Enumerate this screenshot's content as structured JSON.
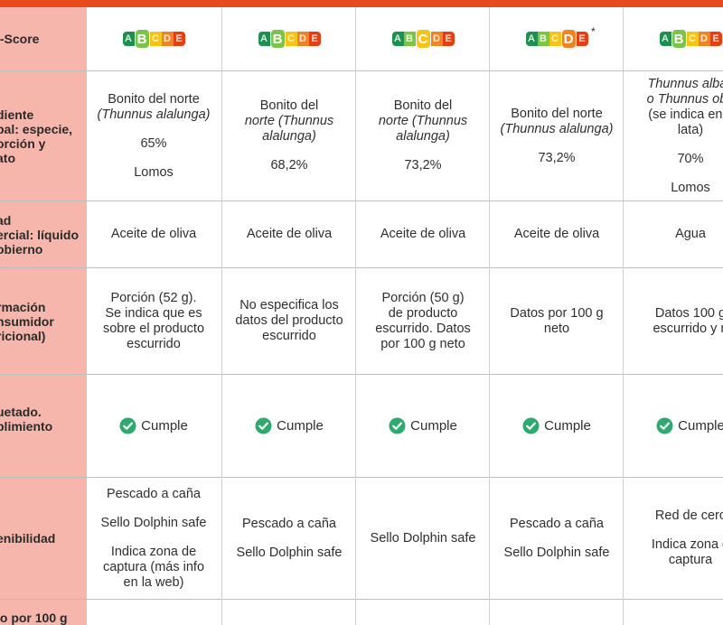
{
  "colors": {
    "accent_bar": "#e84a1b",
    "label_bg": "#f6b6ac",
    "check_green": "#2daa6e",
    "ns_a": "#1e8f4e",
    "ns_b": "#7ac547",
    "ns_c": "#f5c415",
    "ns_d": "#f08424",
    "ns_e": "#e63e11"
  },
  "row_labels": {
    "nutriscore": "i-Score",
    "ingrediente": "diente\npal: especie,\norción y\nato",
    "denominacion": "ad\nercial: líquido\nobierno",
    "informacion": "rmación\nnsumidor\nricional)",
    "etiquetado": "uetado.\nplimiento\nl",
    "sostenibilidad": "enibilidad",
    "precio": "io por 100 g"
  },
  "nutriscore_letters": [
    "A",
    "B",
    "C",
    "D",
    "E"
  ],
  "products": [
    {
      "nutriscore_active": "B",
      "ingrediente": [
        "Bonito del norte",
        "(Thunnus alalunga)",
        "",
        "65%",
        "",
        "Lomos"
      ],
      "liquido": "Aceite de oliva",
      "info": [
        "Porción (52 g).",
        "Se indica que es",
        "sobre el producto",
        "escurrido"
      ],
      "cumple": "Cumple",
      "sostenibilidad": [
        "Pescado a caña",
        "",
        "Sello Dolphin safe",
        "",
        "Indica zona de",
        "captura (más info",
        "en la web)"
      ]
    },
    {
      "nutriscore_active": "B",
      "ingrediente": [
        "Bonito del",
        "norte (Thunnus",
        "alalunga)",
        "",
        "68,2%"
      ],
      "liquido": "Aceite de oliva",
      "info": [
        "No especifica los",
        "datos del producto",
        "escurrido"
      ],
      "cumple": "Cumple",
      "sostenibilidad": [
        "Pescado a caña",
        "",
        "Sello Dolphin safe"
      ]
    },
    {
      "nutriscore_active": "C",
      "ingrediente": [
        "Bonito del",
        "norte (Thunnus",
        "alalunga)",
        "",
        "73,2%"
      ],
      "liquido": "Aceite de oliva",
      "info": [
        "Porción (50 g)",
        "de producto",
        "escurrido. Datos",
        "por 100 g neto"
      ],
      "cumple": "Cumple",
      "sostenibilidad": [
        "Sello Dolphin safe"
      ]
    },
    {
      "nutriscore_active": "D",
      "nutriscore_note": "*",
      "ingrediente": [
        "Bonito del norte",
        "(Thunnus alalunga)",
        "",
        "73,2%"
      ],
      "liquido": "Aceite de oliva",
      "info": [
        "Datos por 100 g",
        "neto"
      ],
      "cumple": "Cumple",
      "sostenibilidad": [
        "Pescado a caña",
        "",
        "Sello Dolphin safe"
      ]
    },
    {
      "nutriscore_active": "B",
      "ingrediente": [
        "Thunnus albac",
        "o Thunnus obe",
        "(se indica en c",
        "lata)",
        "",
        "70%",
        "",
        "Lomos"
      ],
      "liquido": "Agua",
      "info": [
        "Datos 100 g",
        "escurrido y n"
      ],
      "cumple": "Cumple",
      "sostenibilidad": [
        "Red de cerc",
        "",
        "Indica zona d",
        "captura"
      ]
    }
  ]
}
